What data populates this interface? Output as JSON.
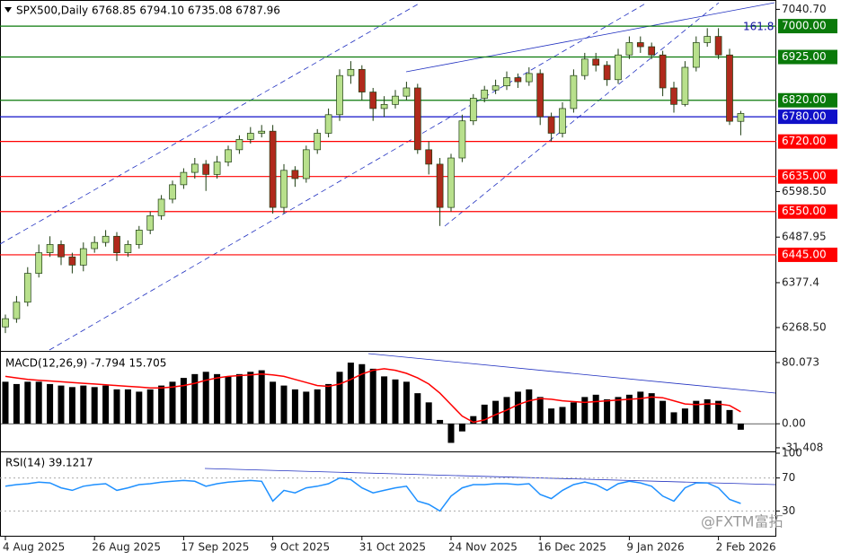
{
  "chart_data": [
    {
      "type": "candlestick",
      "title": "SPX500,Daily  6768.85 6794.10 6735.08 6787.96",
      "categories": [
        "4 Aug 2025",
        null,
        null,
        null,
        null,
        null,
        null,
        null,
        "26 Aug 2025",
        null,
        null,
        null,
        null,
        null,
        null,
        null,
        "17 Sep 2025",
        null,
        null,
        null,
        null,
        null,
        null,
        null,
        "9 Oct 2025",
        null,
        null,
        null,
        null,
        null,
        null,
        null,
        "31 Oct 2025",
        null,
        null,
        null,
        null,
        null,
        null,
        null,
        "24 Nov 2025",
        null,
        null,
        null,
        null,
        null,
        null,
        null,
        "16 Dec 2025",
        null,
        null,
        null,
        null,
        null,
        null,
        null,
        "9 Jan 2026",
        null,
        null,
        null,
        null,
        null,
        null,
        null,
        "2 Feb 2026",
        null,
        null
      ],
      "open": [
        6270,
        6290,
        6330,
        6400,
        6450,
        6470,
        6440,
        6420,
        6460,
        6475,
        6490,
        6450,
        6470,
        6505,
        6540,
        6580,
        6615,
        6645,
        6665,
        6640,
        6670,
        6700,
        6725,
        6740,
        6745,
        6560,
        6650,
        6630,
        6700,
        6740,
        6785,
        6880,
        6895,
        6840,
        6800,
        6810,
        6830,
        6850,
        6700,
        6665,
        6560,
        6680,
        6770,
        6825,
        6845,
        6855,
        6875,
        6865,
        6885,
        6780,
        6740,
        6800,
        6880,
        6920,
        6905,
        6870,
        6930,
        6960,
        6950,
        6930,
        6850,
        6810,
        6900,
        6960,
        6975,
        6930,
        6768.85
      ],
      "high": [
        6300,
        6345,
        6415,
        6470,
        6490,
        6480,
        6450,
        6475,
        6490,
        6505,
        6500,
        6480,
        6515,
        6550,
        6590,
        6625,
        6655,
        6680,
        6675,
        6685,
        6710,
        6735,
        6755,
        6760,
        6760,
        6665,
        6660,
        6710,
        6750,
        6800,
        6895,
        6915,
        6905,
        6850,
        6830,
        6845,
        6865,
        6860,
        6720,
        6680,
        6690,
        6785,
        6835,
        6855,
        6870,
        6890,
        6885,
        6900,
        6895,
        6790,
        6815,
        6895,
        6935,
        6935,
        6915,
        6945,
        6975,
        6975,
        6960,
        6940,
        6865,
        6915,
        6975,
        6995,
        6995,
        6945,
        6794.1
      ],
      "low": [
        6255,
        6280,
        6320,
        6390,
        6440,
        6420,
        6400,
        6405,
        6450,
        6465,
        6430,
        6440,
        6460,
        6495,
        6530,
        6570,
        6605,
        6630,
        6600,
        6630,
        6660,
        6690,
        6715,
        6730,
        6545,
        6545,
        6610,
        6620,
        6690,
        6730,
        6770,
        6860,
        6820,
        6770,
        6780,
        6800,
        6820,
        6690,
        6640,
        6515,
        6550,
        6670,
        6760,
        6815,
        6835,
        6845,
        6850,
        6855,
        6760,
        6720,
        6730,
        6790,
        6870,
        6890,
        6855,
        6860,
        6920,
        6935,
        6920,
        6830,
        6790,
        6805,
        6890,
        6950,
        6920,
        6760,
        6735.08
      ],
      "close": [
        6290,
        6330,
        6400,
        6450,
        6470,
        6440,
        6420,
        6460,
        6475,
        6490,
        6450,
        6470,
        6505,
        6540,
        6580,
        6615,
        6645,
        6665,
        6640,
        6670,
        6700,
        6725,
        6740,
        6745,
        6560,
        6650,
        6630,
        6700,
        6740,
        6785,
        6880,
        6895,
        6840,
        6800,
        6810,
        6830,
        6850,
        6700,
        6665,
        6560,
        6680,
        6770,
        6825,
        6845,
        6855,
        6875,
        6865,
        6885,
        6780,
        6740,
        6800,
        6880,
        6920,
        6905,
        6870,
        6930,
        6960,
        6950,
        6930,
        6850,
        6810,
        6900,
        6960,
        6975,
        6930,
        6769,
        6787.96
      ],
      "up_color": "#b8e08c",
      "down_color": "#b02a1c",
      "wick_color": "#1d3d10",
      "ylim": [
        6214,
        7059
      ],
      "yticks": [
        {
          "value": 7040.7,
          "label": "7040.70"
        },
        {
          "value": 6598.5,
          "label": "6598.50"
        },
        6487.95,
        6377.4,
        {
          "value": 6268.5,
          "label": "6268.50"
        }
      ],
      "levels": [
        {
          "value": 7000,
          "label": "7000.00",
          "color": "#0a7a0a"
        },
        {
          "value": 6925,
          "label": "6925.00",
          "color": "#0a7a0a"
        },
        {
          "value": 6820,
          "label": "6820.00",
          "color": "#0a7a0a"
        },
        {
          "value": 6780,
          "label": "6780.00",
          "color": "#1010c8"
        },
        {
          "value": 6720,
          "label": "6720.00",
          "color": "#ff0000"
        },
        {
          "value": 6635,
          "label": "6635.00",
          "color": "#ff0000"
        },
        {
          "value": 6550,
          "label": "6550.00",
          "color": "#ff0000"
        },
        {
          "value": 6445,
          "label": "6445.00",
          "color": "#ff0000"
        }
      ],
      "fib_label": "161.8"
    },
    {
      "type": "macd",
      "title": "MACD(12,26,9) -7.794 15.705",
      "values": [
        55,
        52,
        55,
        55,
        52,
        50,
        48,
        50,
        48,
        50,
        45,
        45,
        42,
        45,
        50,
        55,
        60,
        65,
        68,
        65,
        62,
        65,
        68,
        70,
        55,
        50,
        45,
        42,
        45,
        52,
        68,
        80,
        78,
        72,
        62,
        58,
        55,
        40,
        28,
        5,
        -25,
        -10,
        10,
        25,
        30,
        35,
        42,
        45,
        35,
        20,
        22,
        28,
        35,
        38,
        32,
        35,
        38,
        42,
        40,
        30,
        15,
        20,
        30,
        32,
        30,
        18,
        -7.794
      ],
      "signal": [
        62,
        60,
        58,
        57,
        56,
        55,
        54,
        53,
        52,
        51,
        50,
        49,
        48,
        47,
        47,
        48,
        50,
        53,
        57,
        60,
        62,
        63,
        64,
        65,
        64,
        62,
        58,
        54,
        50,
        49,
        52,
        58,
        65,
        70,
        72,
        70,
        66,
        60,
        52,
        40,
        25,
        10,
        2,
        5,
        12,
        18,
        25,
        30,
        33,
        32,
        30,
        29,
        28,
        29,
        30,
        31,
        32,
        33,
        35,
        34,
        30,
        26,
        25,
        26,
        26,
        24,
        15.705
      ],
      "color": "#000000",
      "signal_color": "#ff0000",
      "ylim": [
        -35,
        93
      ],
      "yticks": [
        80.073,
        {
          "value": 0,
          "label": "0.00"
        },
        -31.408
      ]
    },
    {
      "type": "rsi",
      "title": "RSI(14) 39.1217",
      "values": [
        60,
        62,
        63,
        65,
        64,
        58,
        55,
        60,
        62,
        63,
        55,
        58,
        62,
        63,
        65,
        66,
        67,
        66,
        60,
        63,
        65,
        66,
        67,
        66,
        42,
        55,
        52,
        58,
        60,
        63,
        70,
        68,
        58,
        52,
        55,
        58,
        60,
        42,
        38,
        30,
        48,
        58,
        62,
        62,
        63,
        63,
        62,
        63,
        50,
        45,
        55,
        62,
        65,
        62,
        55,
        63,
        66,
        64,
        60,
        48,
        42,
        58,
        64,
        64,
        58,
        44,
        39.1217
      ],
      "color": "#1e90ff",
      "ylim": [
        0,
        100
      ],
      "yticks": [
        100,
        70,
        30
      ],
      "levels": [
        70,
        30
      ]
    }
  ],
  "watermark": "@FXTM富拓"
}
